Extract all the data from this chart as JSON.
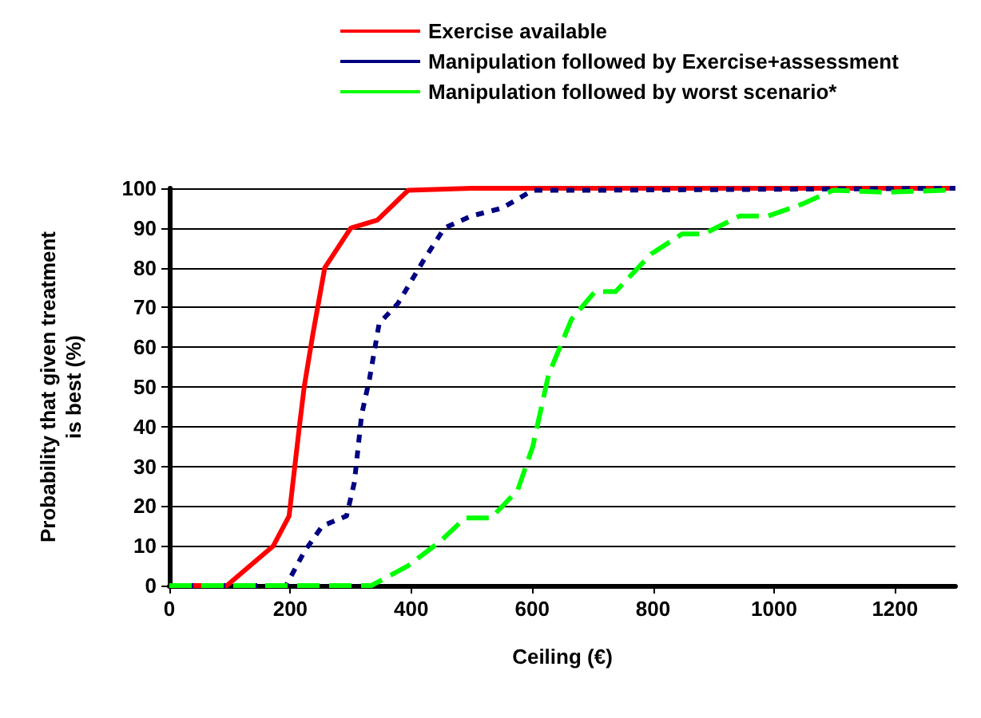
{
  "chart_data": {
    "type": "line",
    "xlabel": "Ceiling (€)",
    "ylabel": "Probability that given treatment\nis best (%)",
    "xlim": [
      0,
      1300
    ],
    "xticks": [
      0,
      200,
      400,
      600,
      800,
      1000,
      1200
    ],
    "ylim": [
      0,
      100
    ],
    "yticks": [
      0,
      10,
      20,
      30,
      40,
      50,
      60,
      70,
      80,
      90,
      100
    ],
    "grid": "y",
    "legend": "top",
    "marker": "none",
    "series": [
      {
        "name": "Exercise available",
        "color": "#ff0000",
        "line_style": "solid",
        "x": [
          0,
          95,
          172,
          198,
          215,
          223,
          237,
          257,
          300,
          344,
          395,
          500,
          1300
        ],
        "values": [
          0,
          0,
          10,
          17.5,
          40,
          50,
          63,
          80,
          90,
          92,
          99.5,
          100,
          100
        ]
      },
      {
        "name": "Manipulation followed by Exercise+assessment",
        "color": "#000080",
        "line_style": "dotted",
        "x": [
          0,
          193,
          223,
          253,
          293,
          306,
          318,
          331,
          347,
          378,
          421,
          455,
          499,
          550,
          601,
          700,
          1300
        ],
        "values": [
          0,
          0,
          8.5,
          15,
          17.5,
          26,
          43,
          52,
          66,
          71,
          82,
          90,
          93,
          95,
          99.5,
          99.5,
          100
        ]
      },
      {
        "name": "Manipulation followed by worst scenario*",
        "color": "#00ff00",
        "line_style": "dashed",
        "x": [
          0,
          334,
          395,
          447,
          489,
          532,
          576,
          601,
          627,
          665,
          704,
          738,
          797,
          848,
          884,
          943,
          990,
          1046,
          1098,
          1183,
          1285
        ],
        "values": [
          0,
          0,
          5,
          11,
          17,
          17,
          24,
          35,
          53,
          67,
          74,
          74,
          83.5,
          88.5,
          88.5,
          93,
          93,
          96,
          99.5,
          99,
          99.5
        ]
      }
    ]
  }
}
